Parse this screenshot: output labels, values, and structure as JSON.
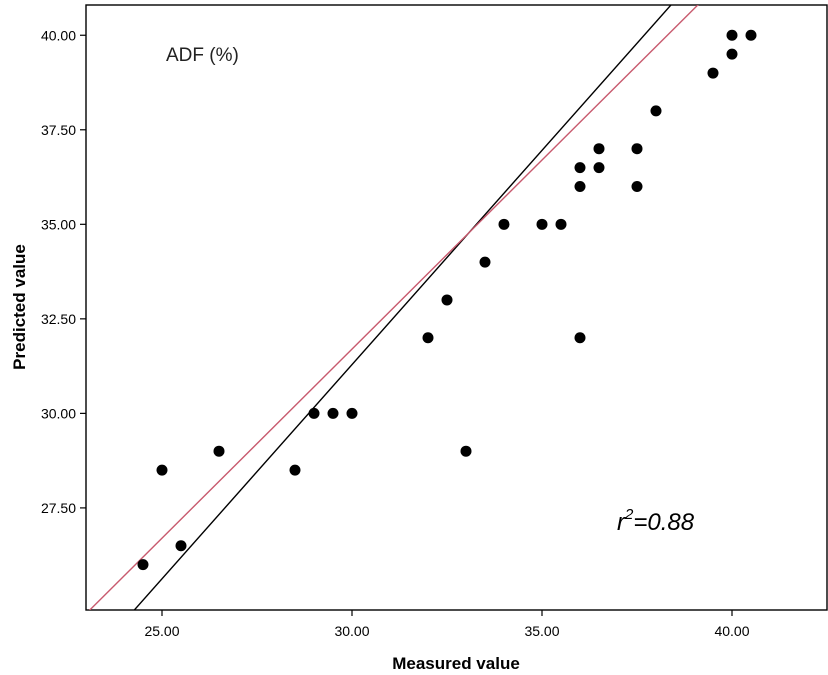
{
  "chart_data": {
    "type": "scatter",
    "title": "",
    "xlabel": "Measured value",
    "ylabel": "Predicted value",
    "xlim": [
      23,
      42.5
    ],
    "ylim": [
      24.8,
      40.8
    ],
    "xticks": [
      25,
      30,
      35,
      40
    ],
    "yticks": [
      27.5,
      30,
      32.5,
      35,
      37.5,
      40
    ],
    "xtick_labels": [
      "25.00",
      "30.00",
      "35.00",
      "40.00"
    ],
    "ytick_labels": [
      "27.50",
      "30.00",
      "32.50",
      "35.00",
      "37.50",
      "40.00"
    ],
    "grid": false,
    "annotation": "ADF (%)",
    "stat": {
      "symbol": "r",
      "exponent": "2",
      "value_text": "=0.88"
    },
    "points": {
      "x": [
        24.5,
        25,
        25.5,
        26.5,
        28.5,
        29,
        29.5,
        30,
        32,
        32.5,
        33,
        33.5,
        34,
        35,
        35.5,
        36,
        36,
        36,
        36.5,
        36.5,
        37.5,
        37.5,
        38,
        39.5,
        40,
        40,
        40.5
      ],
      "y": [
        26,
        28.5,
        26.5,
        29,
        28.5,
        30,
        30,
        30,
        32,
        33,
        29,
        34,
        35,
        35,
        35,
        36.5,
        36,
        32,
        37,
        36.5,
        37,
        36,
        38,
        39,
        40,
        39.5,
        40
      ]
    },
    "lines": [
      {
        "kind": "fit",
        "color": "#000000",
        "slope": 1.133,
        "intercept": -2.7
      },
      {
        "kind": "reference",
        "color": "#c85a6e",
        "slope": 1.0,
        "intercept": 1.7
      }
    ],
    "colors": {
      "points": "#000000",
      "axes": "#000000"
    }
  }
}
